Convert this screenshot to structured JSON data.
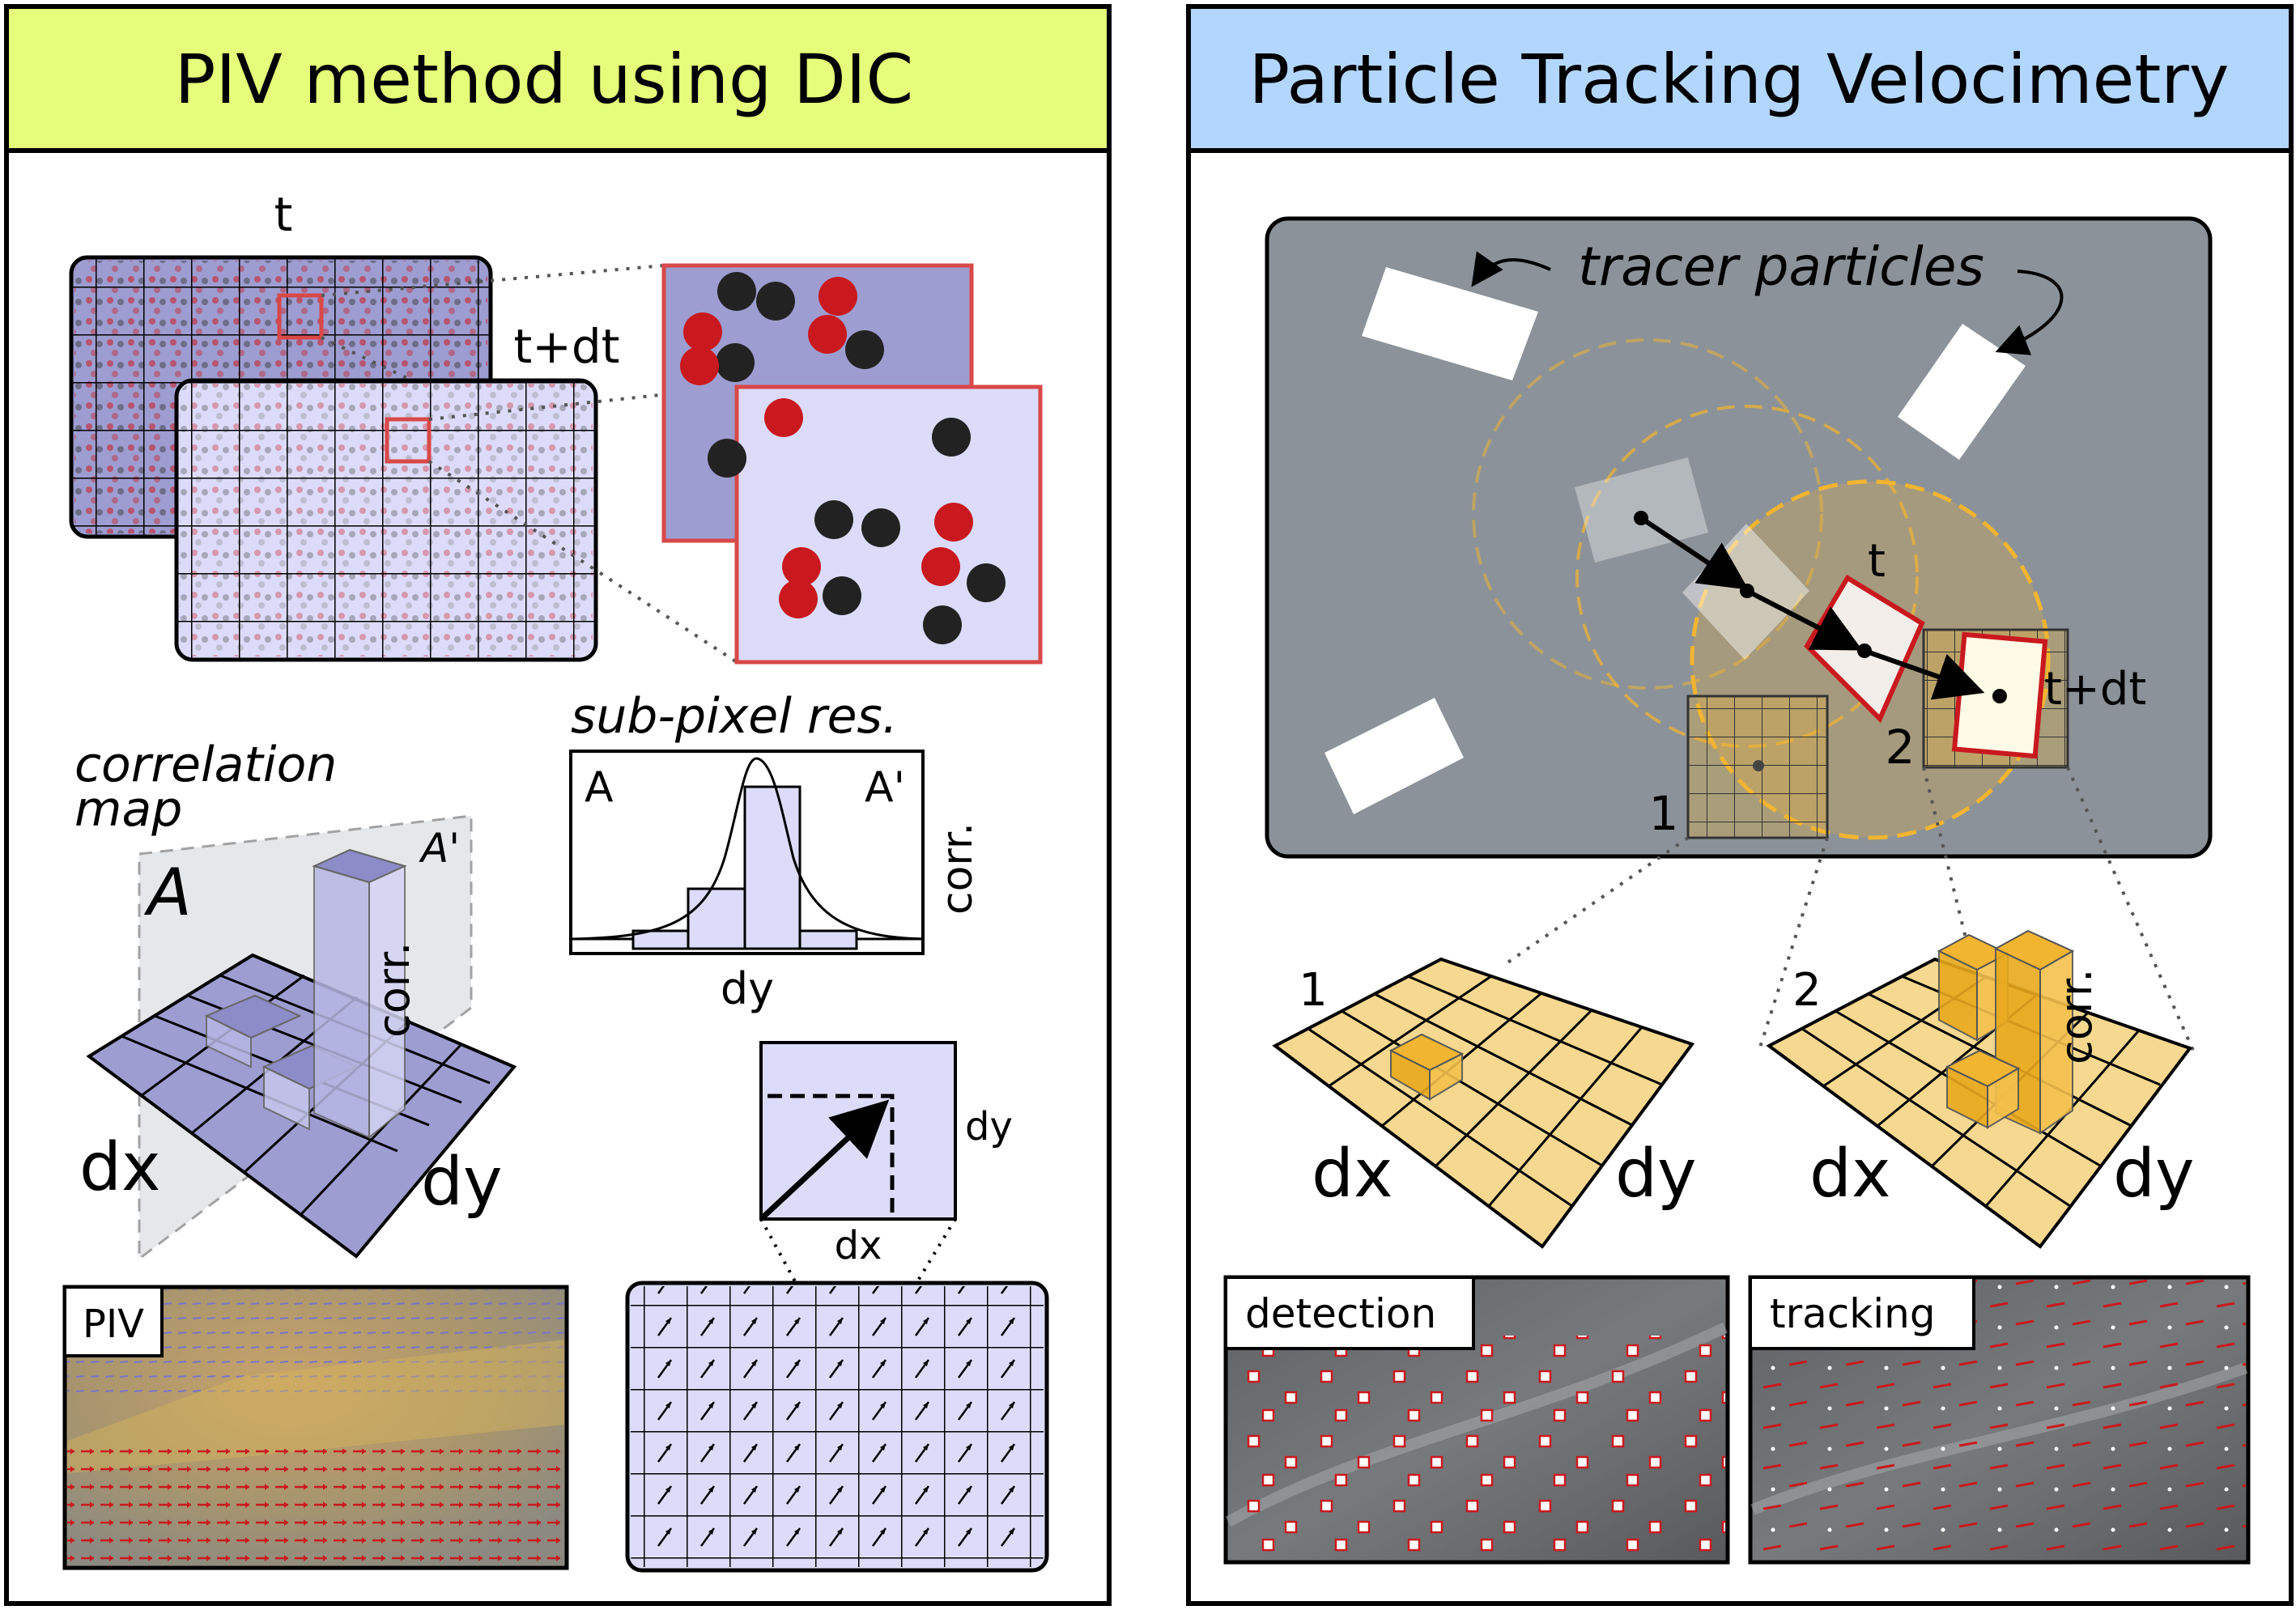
{
  "left_panel": {
    "title": "PIV method using DIC",
    "header_color": "#e5fd7a",
    "frame_t_label": "t",
    "frame_tdt_label": "t+dt",
    "correlation_map_label_1": "correlation",
    "correlation_map_label_2": "map",
    "map_label_A": "A",
    "map_label_Aprime": "A'",
    "map_label_corr": "corr.",
    "map_label_dx": "dx",
    "map_label_dy": "dy",
    "subpixel_title": "sub-pixel res.",
    "subpixel_label_A": "A",
    "subpixel_label_Aprime": "A'",
    "subpixel_label_corr": "corr.",
    "subpixel_label_dy": "dy",
    "vector_label_dy": "dy",
    "vector_label_dx": "dx",
    "piv_photo_label": "PIV"
  },
  "right_panel": {
    "title": "Particle Tracking Velocimetry",
    "header_color": "#b3d6ff",
    "tracer_label": "tracer particles",
    "label_t": "t",
    "label_tdt": "t+dt",
    "label_1": "1",
    "label_2": "2",
    "map1_label": "1",
    "map2_label": "2",
    "map_label_dx": "dx",
    "map_label_dy": "dy",
    "map_label_corr": "corr.",
    "detection_label": "detection",
    "tracking_label": "tracking"
  },
  "colors": {
    "frame_fill_dark": "#9d9dd1",
    "frame_fill_light": "#dcdcfa",
    "particle_red": "#c9191f",
    "particle_black": "#222222",
    "ptv_background": "#8b9299",
    "orange": "#f2b531"
  }
}
